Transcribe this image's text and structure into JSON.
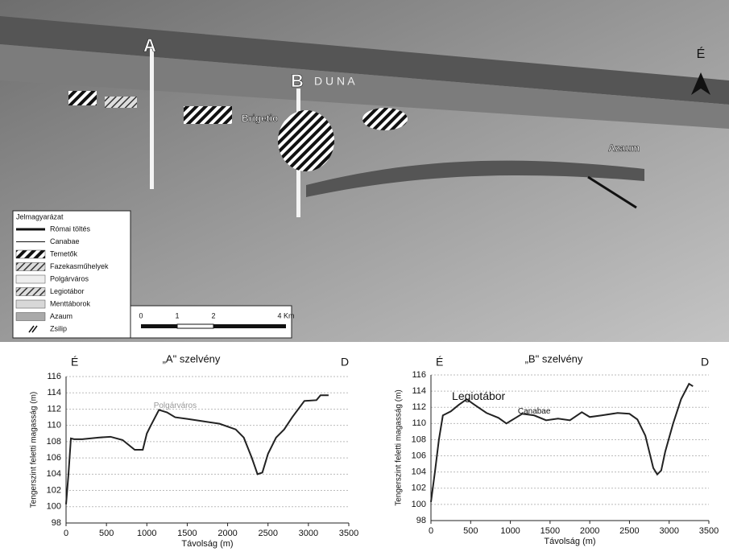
{
  "map": {
    "labels": {
      "a": "A",
      "b": "B",
      "river": "D U N A",
      "north": "É",
      "brigetio": "Brigetio",
      "azaum": "Azaum"
    },
    "legend": {
      "title": "Jelmagyarázat",
      "items": [
        "Római töltés",
        "Canabae",
        "Temetők",
        "Fazekasműhelyek",
        "Polgárváros",
        "Legiotábor",
        "Menttáborok",
        "Azaum",
        "Zsilip"
      ]
    },
    "scale_labels": [
      "0",
      "1",
      "2",
      "4 Km"
    ]
  },
  "chart_data": [
    {
      "type": "line",
      "title": "„A\" szelvény",
      "left_label": "É",
      "right_label": "D",
      "annotation": "Polgárváros",
      "x_label": "Távolság (m)",
      "y_label": "Tengerszint feletti magasság (m)",
      "color": "#222222",
      "x": [
        0,
        30,
        60,
        100,
        200,
        400,
        550,
        700,
        850,
        950,
        1000,
        1050,
        1150,
        1250,
        1350,
        1500,
        1700,
        1900,
        2100,
        2200,
        2300,
        2370,
        2430,
        2500,
        2600,
        2700,
        2800,
        2950,
        3100,
        3150,
        3250
      ],
      "values": [
        100.3,
        104,
        108.4,
        108.3,
        108.3,
        108.5,
        108.6,
        108.2,
        107,
        107,
        109,
        110,
        111.9,
        111.6,
        111,
        110.8,
        110.5,
        110.2,
        109.5,
        108.5,
        106,
        104,
        104.2,
        106.5,
        108.5,
        109.5,
        111,
        113,
        113.1,
        113.7,
        113.7
      ],
      "xlim": [
        0,
        3500
      ],
      "xticks": [
        0,
        500,
        1000,
        1500,
        2000,
        2500,
        3000,
        3500
      ],
      "ylim": [
        98,
        116
      ],
      "yticks": [
        98,
        100,
        102,
        104,
        106,
        108,
        110,
        112,
        114,
        116
      ],
      "grid": true
    },
    {
      "type": "line",
      "title": "„B\" szelvény",
      "left_label": "É",
      "right_label": "D",
      "annotation": "Legiotábor",
      "annotation2": "Canabae",
      "x_label": "Távolság (m)",
      "y_label": "Tengerszint feletti magasság (m)",
      "color": "#222222",
      "x": [
        0,
        50,
        100,
        150,
        250,
        350,
        450,
        550,
        700,
        850,
        950,
        1050,
        1150,
        1300,
        1450,
        1600,
        1750,
        1900,
        2000,
        2150,
        2350,
        2500,
        2600,
        2700,
        2800,
        2850,
        2900,
        2950,
        3050,
        3150,
        3250,
        3300
      ],
      "values": [
        100.3,
        104,
        108,
        111,
        111.5,
        112.3,
        113,
        112.3,
        111.3,
        110.7,
        110,
        110.6,
        111.2,
        111,
        110.4,
        110.6,
        110.4,
        111.4,
        110.8,
        111,
        111.3,
        111.2,
        110.5,
        108.5,
        104.5,
        103.7,
        104.2,
        106.5,
        110,
        113,
        114.9,
        114.6
      ],
      "xlim": [
        0,
        3500
      ],
      "xticks": [
        0,
        500,
        1000,
        1500,
        2000,
        2500,
        3000,
        3500
      ],
      "ylim": [
        98,
        116
      ],
      "yticks": [
        98,
        100,
        102,
        104,
        106,
        108,
        110,
        112,
        114,
        116
      ],
      "grid": true
    }
  ]
}
